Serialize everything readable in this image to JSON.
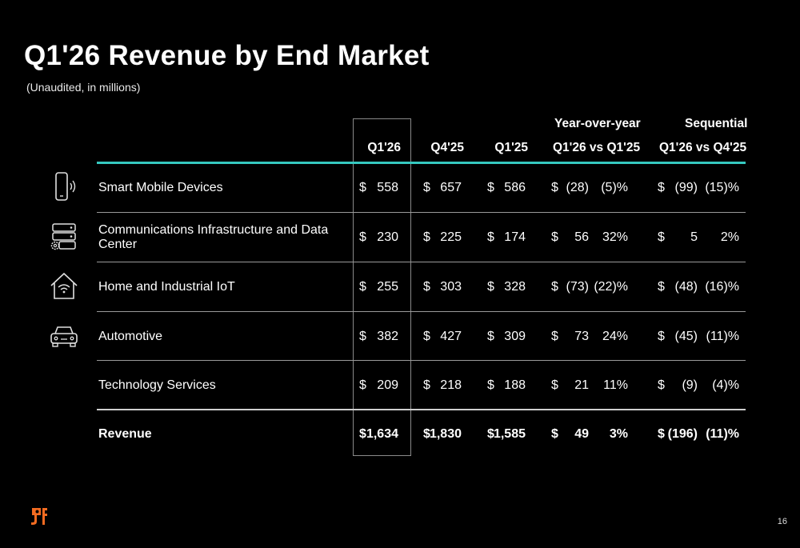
{
  "title": "Q1'26 Revenue by End Market",
  "subtitle": "(Unaudited, in millions)",
  "group_headers": {
    "yoy": "Year-over-year",
    "seq": "Sequential"
  },
  "columns": [
    "Q1'26",
    "Q4'25",
    "Q1'25",
    "Q1'26 vs Q1'25",
    "Q1'26 vs Q4'25"
  ],
  "currency": "$",
  "rows": [
    {
      "label": "Smart Mobile Devices",
      "icon": "smartphone-icon",
      "q126": "558",
      "q425": "657",
      "q125": "586",
      "yoy_amt": "(28)",
      "yoy_pct": "(5)%",
      "seq_amt": "(99)",
      "seq_pct": "(15)%"
    },
    {
      "label": "Communications Infrastructure and Data Center",
      "label_line1": "Communications Infrastructure and Data",
      "label_line2": "Center",
      "icon": "server-icon",
      "q126": "230",
      "q425": "225",
      "q125": "174",
      "yoy_amt": "56",
      "yoy_pct": "32%",
      "seq_amt": "5",
      "seq_pct": "2%"
    },
    {
      "label": "Home and Industrial IoT",
      "icon": "smart-home-icon",
      "q126": "255",
      "q425": "303",
      "q125": "328",
      "yoy_amt": "(73)",
      "yoy_pct": "(22)%",
      "seq_amt": "(48)",
      "seq_pct": "(16)%"
    },
    {
      "label": "Automotive",
      "icon": "car-icon",
      "q126": "382",
      "q425": "427",
      "q125": "309",
      "yoy_amt": "73",
      "yoy_pct": "24%",
      "seq_amt": "(45)",
      "seq_pct": "(11)%"
    },
    {
      "label": "Technology Services",
      "icon": "",
      "q126": "209",
      "q425": "218",
      "q125": "188",
      "yoy_amt": "21",
      "yoy_pct": "11%",
      "seq_amt": "(9)",
      "seq_pct": "(4)%"
    }
  ],
  "total": {
    "label": "Revenue",
    "q126": "1,634",
    "q425": "1,830",
    "q125": "1,585",
    "yoy_amt": "49",
    "yoy_pct": "3%",
    "seq_amt": "(196)",
    "seq_pct": "(11)%"
  },
  "page_number": "16",
  "colors": {
    "accent_teal": "#36c9c0",
    "logo_orange": "#f26b21"
  }
}
